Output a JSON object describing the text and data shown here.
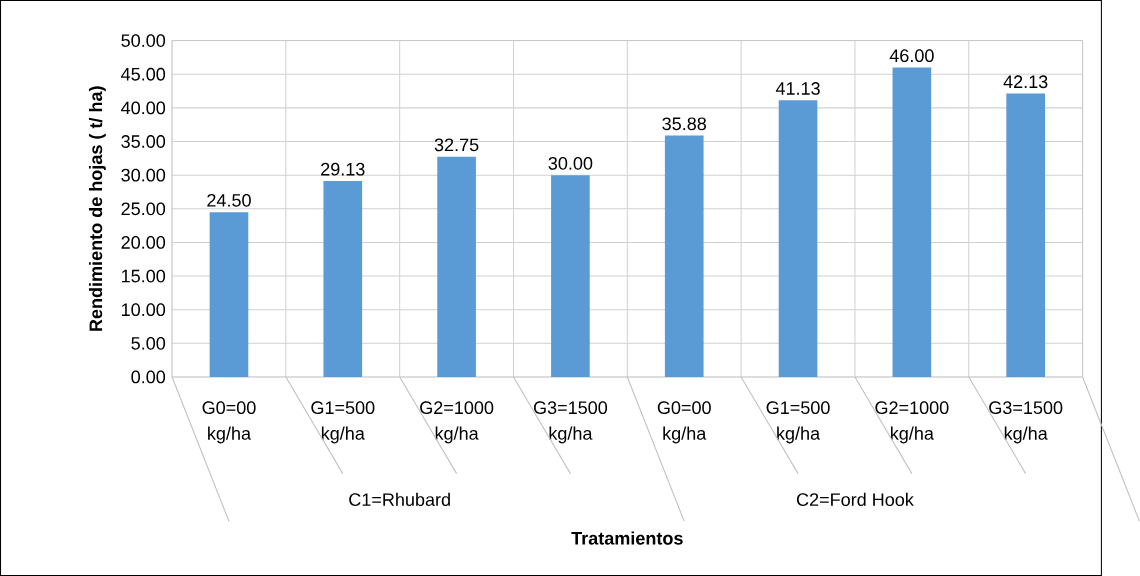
{
  "chart_data": {
    "type": "bar",
    "ylabel": "Rendimiento de hojas ( t/ ha)",
    "xlabel": "Tratamientos",
    "categories": [
      "G0=00 kg/ha",
      "G1=500 kg/ha",
      "G2=1000 kg/ha",
      "G3=1500 kg/ha",
      "G0=00 kg/ha",
      "G1=500 kg/ha",
      "G2=1000 kg/ha",
      "G3=1500 kg/ha"
    ],
    "values": [
      24.5,
      29.13,
      32.75,
      30,
      35.88,
      41.13,
      46,
      42.13
    ],
    "value_labels": [
      "24.50",
      "29.13",
      "32.75",
      "30.00",
      "35.88",
      "41.13",
      "46.00",
      "42.13"
    ],
    "color": "#5b9bd5",
    "ylim": [
      0,
      50
    ],
    "yticks": [
      {
        "value": 0,
        "label": "0.00"
      },
      {
        "value": 5,
        "label": "5.00"
      },
      {
        "value": 10,
        "label": "10.00"
      },
      {
        "value": 15,
        "label": "15.00"
      },
      {
        "value": 20,
        "label": "20.00"
      },
      {
        "value": 25,
        "label": "25.00"
      },
      {
        "value": 30,
        "label": "30.00"
      },
      {
        "value": 35,
        "label": "35.00"
      },
      {
        "value": 40,
        "label": "40.00"
      },
      {
        "value": 45,
        "label": "45.00"
      },
      {
        "value": 50,
        "label": "50.00"
      }
    ],
    "grid": true,
    "annotations": [
      "C1=Rhubard",
      "C2=Ford Hook"
    ]
  }
}
